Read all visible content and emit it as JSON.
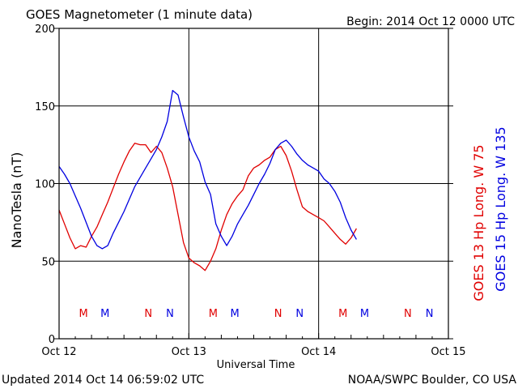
{
  "header": {
    "title": "GOES Magnetometer (1 minute data)",
    "begin": "Begin:  2014 Oct 12 0000 UTC"
  },
  "footer": {
    "updated": "Updated 2014 Oct 14 06:59:02 UTC",
    "source": "NOAA/SWPC Boulder, CO USA"
  },
  "chart_data": {
    "type": "line",
    "title": "GOES Magnetometer (1 minute data)",
    "xlabel": "Universal Time",
    "ylabel": "NanoTesla (nT)",
    "x_unit": "hours since 2014 Oct 12 0000 UTC",
    "xlim": [
      0,
      72
    ],
    "ylim": [
      0,
      200
    ],
    "yticks": [
      0,
      50,
      100,
      150,
      200
    ],
    "xticks": [
      {
        "x": 0,
        "label": "Oct 12"
      },
      {
        "x": 24,
        "label": "Oct 13"
      },
      {
        "x": 48,
        "label": "Oct 14"
      },
      {
        "x": 72,
        "label": "Oct 15"
      }
    ],
    "grid": true,
    "series": [
      {
        "name": "GOES 13 Hp  Long. W 75",
        "color": "#e00000",
        "points": [
          [
            0,
            83
          ],
          [
            1,
            74
          ],
          [
            2,
            65
          ],
          [
            3,
            58
          ],
          [
            4,
            60
          ],
          [
            5,
            59
          ],
          [
            6,
            66
          ],
          [
            7,
            72
          ],
          [
            8,
            80
          ],
          [
            9,
            88
          ],
          [
            10,
            97
          ],
          [
            11,
            106
          ],
          [
            12,
            114
          ],
          [
            13,
            121
          ],
          [
            14,
            126
          ],
          [
            15,
            125
          ],
          [
            16,
            125
          ],
          [
            17,
            120
          ],
          [
            18,
            124
          ],
          [
            19,
            120
          ],
          [
            20,
            110
          ],
          [
            21,
            98
          ],
          [
            22,
            80
          ],
          [
            23,
            62
          ],
          [
            24,
            52
          ],
          [
            25,
            49
          ],
          [
            26,
            47
          ],
          [
            27,
            44
          ],
          [
            28,
            50
          ],
          [
            29,
            58
          ],
          [
            30,
            70
          ],
          [
            31,
            80
          ],
          [
            32,
            87
          ],
          [
            33,
            92
          ],
          [
            34,
            96
          ],
          [
            35,
            105
          ],
          [
            36,
            110
          ],
          [
            37,
            112
          ],
          [
            38,
            115
          ],
          [
            39,
            117
          ],
          [
            40,
            122
          ],
          [
            41,
            124
          ],
          [
            42,
            118
          ],
          [
            43,
            108
          ],
          [
            44,
            96
          ],
          [
            45,
            85
          ],
          [
            46,
            82
          ],
          [
            47,
            80
          ],
          [
            48,
            78
          ],
          [
            49,
            76
          ],
          [
            50,
            72
          ],
          [
            51,
            68
          ],
          [
            52,
            64
          ],
          [
            53,
            61
          ],
          [
            54,
            65
          ],
          [
            55,
            71
          ]
        ],
        "markers": [
          {
            "x": 4.5,
            "label": "M"
          },
          {
            "x": 16.5,
            "label": "N"
          },
          {
            "x": 28.5,
            "label": "M"
          },
          {
            "x": 40.5,
            "label": "N"
          },
          {
            "x": 52.5,
            "label": "M"
          },
          {
            "x": 64.5,
            "label": "N"
          }
        ]
      },
      {
        "name": "GOES 15 Hp  Long. W 135",
        "color": "#0000e0",
        "points": [
          [
            0,
            111
          ],
          [
            1,
            106
          ],
          [
            2,
            100
          ],
          [
            3,
            92
          ],
          [
            4,
            84
          ],
          [
            5,
            75
          ],
          [
            6,
            66
          ],
          [
            7,
            60
          ],
          [
            8,
            58
          ],
          [
            9,
            60
          ],
          [
            10,
            68
          ],
          [
            11,
            75
          ],
          [
            12,
            82
          ],
          [
            13,
            90
          ],
          [
            14,
            98
          ],
          [
            15,
            104
          ],
          [
            16,
            110
          ],
          [
            17,
            116
          ],
          [
            18,
            122
          ],
          [
            19,
            130
          ],
          [
            20,
            140
          ],
          [
            21,
            160
          ],
          [
            22,
            157
          ],
          [
            23,
            143
          ],
          [
            24,
            130
          ],
          [
            25,
            121
          ],
          [
            26,
            114
          ],
          [
            27,
            101
          ],
          [
            28,
            93
          ],
          [
            29,
            74
          ],
          [
            30,
            66
          ],
          [
            31,
            60
          ],
          [
            32,
            66
          ],
          [
            33,
            74
          ],
          [
            34,
            80
          ],
          [
            35,
            86
          ],
          [
            36,
            93
          ],
          [
            37,
            100
          ],
          [
            38,
            106
          ],
          [
            39,
            113
          ],
          [
            40,
            122
          ],
          [
            41,
            126
          ],
          [
            42,
            128
          ],
          [
            43,
            124
          ],
          [
            44,
            119
          ],
          [
            45,
            115
          ],
          [
            46,
            112
          ],
          [
            47,
            110
          ],
          [
            48,
            108
          ],
          [
            49,
            103
          ],
          [
            50,
            100
          ],
          [
            51,
            95
          ],
          [
            52,
            88
          ],
          [
            53,
            78
          ],
          [
            54,
            70
          ],
          [
            55,
            64
          ]
        ],
        "markers": [
          {
            "x": 8.5,
            "label": "M"
          },
          {
            "x": 20.5,
            "label": "N"
          },
          {
            "x": 32.5,
            "label": "M"
          },
          {
            "x": 44.5,
            "label": "N"
          },
          {
            "x": 56.5,
            "label": "M"
          },
          {
            "x": 68.5,
            "label": "N"
          }
        ]
      }
    ],
    "legend": [
      {
        "text": "GOES 13 Hp  Long. W 75",
        "color": "#e00000"
      },
      {
        "text": "GOES 15 Hp  Long. W 135",
        "color": "#0000e0"
      }
    ],
    "legend_position": "right, rotated vertical"
  }
}
